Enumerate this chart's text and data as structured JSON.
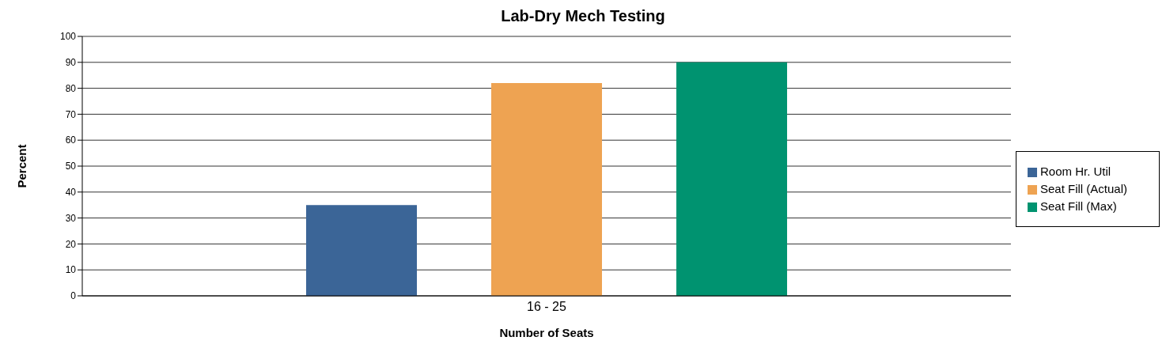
{
  "chart_data": {
    "type": "bar",
    "title": "Lab-Dry Mech Testing",
    "xlabel": "Number of Seats",
    "ylabel": "Percent",
    "categories": [
      "16 - 25"
    ],
    "series": [
      {
        "name": "Room Hr. Util",
        "color": "#3b6597",
        "values": [
          35
        ]
      },
      {
        "name": "Seat Fill (Actual)",
        "color": "#eea352",
        "values": [
          82
        ]
      },
      {
        "name": "Seat Fill (Max)",
        "color": "#009370",
        "values": [
          90
        ]
      }
    ],
    "ylim": [
      0,
      100
    ],
    "yticks": [
      0,
      10,
      20,
      30,
      40,
      50,
      60,
      70,
      80,
      90,
      100
    ],
    "grid": "y",
    "legend": "right"
  }
}
